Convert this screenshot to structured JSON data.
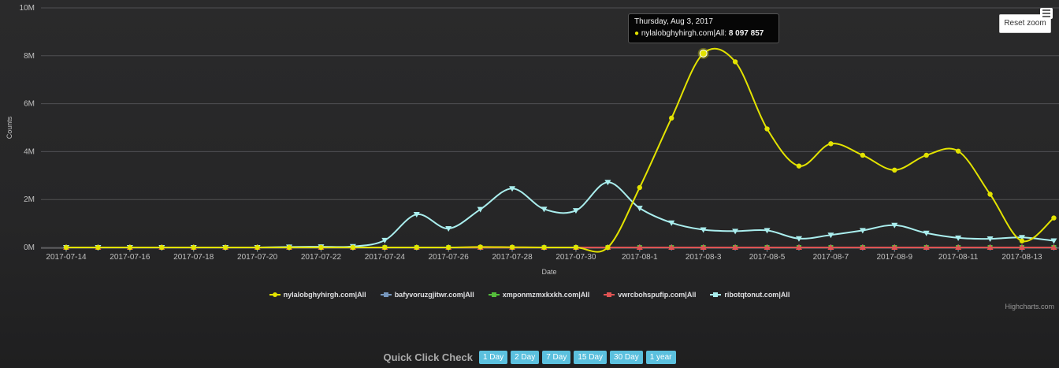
{
  "chart_data": {
    "type": "line",
    "title": "",
    "xlabel": "Date",
    "ylabel": "Counts",
    "ylim": [
      0,
      10000000
    ],
    "y_ticks": [
      0,
      2000000,
      4000000,
      6000000,
      8000000,
      10000000
    ],
    "y_tick_labels": [
      "0M",
      "2M",
      "4M",
      "6M",
      "8M",
      "10M"
    ],
    "x_tick_labels": [
      "2017-07-14",
      "2017-07-16",
      "2017-07-18",
      "2017-07-20",
      "2017-07-22",
      "2017-07-24",
      "2017-07-26",
      "2017-07-28",
      "2017-07-30",
      "2017-08-1",
      "2017-08-3",
      "2017-08-5",
      "2017-08-7",
      "2017-08-9",
      "2017-08-11",
      "2017-08-13"
    ],
    "x": [
      "2017-07-14",
      "2017-07-15",
      "2017-07-16",
      "2017-07-17",
      "2017-07-18",
      "2017-07-19",
      "2017-07-20",
      "2017-07-21",
      "2017-07-22",
      "2017-07-23",
      "2017-07-24",
      "2017-07-25",
      "2017-07-26",
      "2017-07-27",
      "2017-07-28",
      "2017-07-29",
      "2017-07-30",
      "2017-07-31",
      "2017-08-01",
      "2017-08-02",
      "2017-08-03",
      "2017-08-04",
      "2017-08-05",
      "2017-08-06",
      "2017-08-07",
      "2017-08-08",
      "2017-08-09",
      "2017-08-10",
      "2017-08-11",
      "2017-08-12",
      "2017-08-13",
      "2017-08-14"
    ],
    "grid": true,
    "legend_position": "bottom-center",
    "series": [
      {
        "name": "nylalobghyhirgh.com|All",
        "color": "#e3e300",
        "marker": "circle",
        "values": [
          0,
          0,
          0,
          0,
          0,
          0,
          0,
          0,
          0,
          0,
          0,
          0,
          0,
          20000,
          10000,
          0,
          0,
          0,
          2500000,
          5400000,
          8097857,
          7750000,
          4950000,
          3400000,
          4330000,
          3850000,
          3230000,
          3850000,
          4020000,
          2220000,
          270000,
          1230000
        ]
      },
      {
        "name": "bafyvoruzgjitwr.com|All",
        "color": "#7798bf",
        "marker": "diamond",
        "values": [
          0,
          0,
          0,
          0,
          0,
          0,
          0,
          0,
          0,
          0,
          0,
          0,
          0,
          0,
          0,
          0,
          0,
          0,
          0,
          0,
          0,
          0,
          0,
          0,
          0,
          0,
          0,
          0,
          0,
          0,
          0,
          0
        ]
      },
      {
        "name": "xmponmzmxkxkh.com|All",
        "color": "#55bf3b",
        "marker": "square",
        "values": [
          0,
          0,
          0,
          0,
          0,
          0,
          0,
          0,
          0,
          0,
          0,
          0,
          0,
          0,
          0,
          0,
          0,
          0,
          0,
          0,
          0,
          0,
          0,
          0,
          0,
          0,
          0,
          0,
          0,
          0,
          0,
          0
        ]
      },
      {
        "name": "vwrcbohspufip.com|All",
        "color": "#df5353",
        "marker": "triangle",
        "values": [
          0,
          0,
          0,
          0,
          0,
          0,
          0,
          0,
          0,
          0,
          0,
          0,
          0,
          0,
          0,
          0,
          0,
          0,
          0,
          0,
          0,
          0,
          0,
          0,
          0,
          0,
          0,
          0,
          0,
          0,
          0,
          0
        ]
      },
      {
        "name": "ribotqtonut.com|All",
        "color": "#aaeeee",
        "marker": "triangle-down",
        "values": [
          0,
          0,
          0,
          0,
          0,
          0,
          0,
          20000,
          30000,
          40000,
          300000,
          1380000,
          790000,
          1590000,
          2460000,
          1600000,
          1540000,
          2720000,
          1640000,
          1030000,
          740000,
          680000,
          710000,
          370000,
          520000,
          710000,
          930000,
          600000,
          400000,
          360000,
          420000,
          280000
        ]
      }
    ]
  },
  "tooltip": {
    "date": "Thursday, Aug 3, 2017",
    "bullet": "●",
    "series": "nylalobghyhirgh.com|All:",
    "value": "8 097 857",
    "index": 20
  },
  "controls": {
    "reset_zoom": "Reset zoom",
    "credits": "Highcharts.com"
  },
  "quick_check": {
    "label": "Quick Click Check",
    "buttons": [
      "1 Day",
      "2 Day",
      "7 Day",
      "15 Day",
      "30 Day",
      "1 year"
    ]
  }
}
